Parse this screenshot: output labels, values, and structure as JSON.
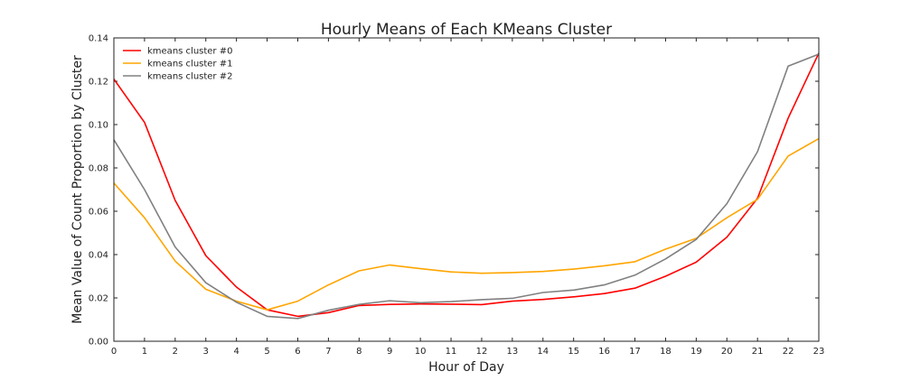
{
  "chart_data": {
    "type": "line",
    "title": "Hourly Means of Each KMeans Cluster",
    "xlabel": "Hour of Day",
    "ylabel": "Mean Value of Count Proportion by Cluster",
    "xlim": [
      0,
      23
    ],
    "ylim": [
      0,
      0.14
    ],
    "x": [
      0,
      1,
      2,
      3,
      4,
      5,
      6,
      7,
      8,
      9,
      10,
      11,
      12,
      13,
      14,
      15,
      16,
      17,
      18,
      19,
      20,
      21,
      22,
      23
    ],
    "xticks": [
      "0",
      "1",
      "2",
      "3",
      "4",
      "5",
      "6",
      "7",
      "8",
      "9",
      "10",
      "11",
      "12",
      "13",
      "14",
      "15",
      "16",
      "17",
      "18",
      "19",
      "20",
      "21",
      "22",
      "23"
    ],
    "yticks": [
      "0.00",
      "0.02",
      "0.04",
      "0.06",
      "0.08",
      "0.10",
      "0.12",
      "0.14"
    ],
    "ytick_values": [
      0,
      0.02,
      0.04,
      0.06,
      0.08,
      0.1,
      0.12,
      0.14
    ],
    "grid": false,
    "legend_position": "top-left",
    "series": [
      {
        "name": "kmeans cluster #0",
        "color": "#ff0000",
        "values": [
          0.121,
          0.101,
          0.065,
          0.0395,
          0.025,
          0.0145,
          0.0115,
          0.0132,
          0.0165,
          0.017,
          0.0172,
          0.0171,
          0.0169,
          0.0185,
          0.0193,
          0.0205,
          0.022,
          0.0245,
          0.03,
          0.0365,
          0.048,
          0.066,
          0.103,
          0.133
        ]
      },
      {
        "name": "kmeans cluster #1",
        "color": "#ffa500",
        "values": [
          0.073,
          0.057,
          0.037,
          0.024,
          0.0185,
          0.0145,
          0.0185,
          0.026,
          0.0325,
          0.0352,
          0.0335,
          0.032,
          0.0314,
          0.0317,
          0.0322,
          0.0333,
          0.0348,
          0.0367,
          0.0425,
          0.0475,
          0.057,
          0.0655,
          0.0855,
          0.0935
        ]
      },
      {
        "name": "kmeans cluster #2",
        "color": "#808080",
        "values": [
          0.093,
          0.07,
          0.0435,
          0.027,
          0.018,
          0.0115,
          0.0105,
          0.0143,
          0.017,
          0.0187,
          0.0178,
          0.0183,
          0.0192,
          0.0198,
          0.0225,
          0.0236,
          0.026,
          0.0305,
          0.038,
          0.047,
          0.0635,
          0.0875,
          0.127,
          0.1325
        ]
      }
    ]
  }
}
